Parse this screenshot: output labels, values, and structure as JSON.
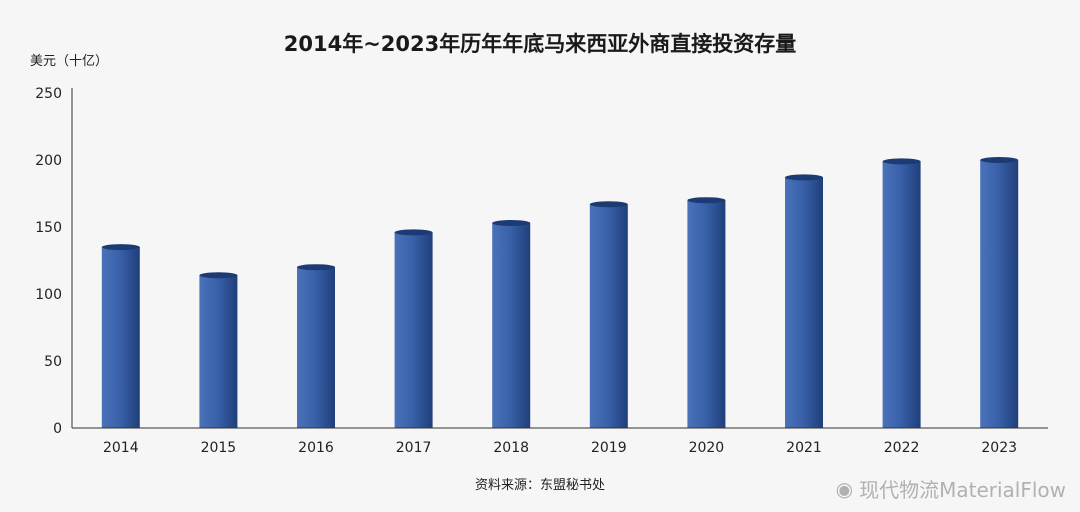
{
  "chart_data": {
    "type": "bar",
    "title": "2014年~2023年历年年底马来西亚外商直接投资存量",
    "ylabel": "美元（十亿）",
    "xlabel": "",
    "categories": [
      "2014",
      "2015",
      "2016",
      "2017",
      "2018",
      "2019",
      "2020",
      "2021",
      "2022",
      "2023"
    ],
    "values": [
      135,
      114,
      120,
      146,
      153,
      167,
      170,
      187,
      199,
      200
    ],
    "ylim": [
      0,
      250
    ],
    "yticks": [
      0,
      50,
      100,
      150,
      200,
      250
    ],
    "grid": false,
    "bar_color": "#2f5597"
  },
  "source": "资料来源：东盟秘书处",
  "watermark": {
    "icon": "weibo-icon",
    "text": "现代物流MaterialFlow"
  }
}
